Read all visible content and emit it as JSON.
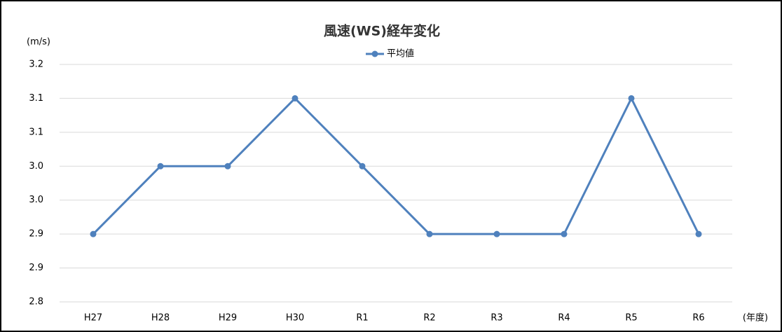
{
  "chart_data": {
    "type": "line",
    "title": "風速(WS)経年変化",
    "y_axis_label": "(m/s)",
    "x_axis_label": "(年度)",
    "categories": [
      "H27",
      "H28",
      "H29",
      "H30",
      "R1",
      "R2",
      "R3",
      "R4",
      "R5",
      "R6"
    ],
    "series": [
      {
        "name": "平均値",
        "color": "#4f81bd",
        "values": [
          2.9,
          3.0,
          3.0,
          3.1,
          3.0,
          2.9,
          2.9,
          2.9,
          3.1,
          2.9
        ]
      }
    ],
    "ylim": [
      2.8,
      3.15
    ],
    "yticks": [
      2.8,
      {
        "value": 2.85,
        "label": "2.9"
      },
      2.9,
      {
        "value": 2.95,
        "label": "3.0"
      },
      {
        "value": 3,
        "label": "3.0"
      },
      {
        "value": 3.05,
        "label": "3.1"
      },
      3.1,
      {
        "value": 3.15,
        "label": "3.2"
      }
    ],
    "grid": true,
    "legend": "top"
  }
}
